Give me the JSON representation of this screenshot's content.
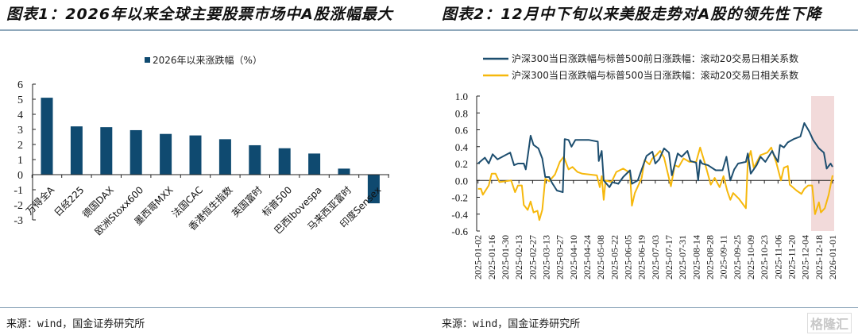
{
  "left": {
    "title": "图表1：2026年以来全球主要股票市场中A股涨幅最大",
    "source": "来源：wind，国金证券研究所"
  },
  "right": {
    "title": "图表2：12月中下旬以来美股走势对A股的领先性下降",
    "source": "来源：wind，国金证券研究所"
  },
  "watermark": "格隆汇",
  "chart_data": [
    {
      "type": "bar",
      "legend": [
        "2026年以来涨跌幅（%）"
      ],
      "legend_placement": "top",
      "categories": [
        "万得全A",
        "日经225",
        "德国DAX",
        "欧洲Stoxx600",
        "墨西哥MXX",
        "法国CAC",
        "香港恒生指数",
        "英国富时",
        "标普500",
        "巴西Ibovespa",
        "马来西亚富时",
        "印度Sensex"
      ],
      "series": [
        {
          "name": "2026年以来涨跌幅（%）",
          "values": [
            5.1,
            3.2,
            3.15,
            2.95,
            2.7,
            2.6,
            2.35,
            1.95,
            1.75,
            1.4,
            0.4,
            -1.9
          ]
        }
      ],
      "ylim": [
        -3,
        6
      ],
      "yticks": [
        "6",
        "5",
        "4",
        "3",
        "2",
        "1",
        "0",
        "-1",
        "-2",
        "-3"
      ],
      "grid": false,
      "colors": {
        "bar": "#0f4a70"
      }
    },
    {
      "type": "line",
      "legend_placement": "top",
      "ylim": [
        -0.6,
        1.0
      ],
      "yticks": [
        "1.0",
        "0.8",
        "0.6",
        "0.4",
        "0.2",
        "0.0",
        "-0.2",
        "-0.4",
        "-0.6"
      ],
      "xticks": [
        "2025-01-02",
        "2025-01-16",
        "2025-01-30",
        "2025-02-13",
        "2025-02-27",
        "2025-03-13",
        "2025-03-27",
        "2025-04-10",
        "2025-04-24",
        "2025-05-08",
        "2025-05-22",
        "2025-06-05",
        "2025-06-19",
        "2025-07-03",
        "2025-07-17",
        "2025-07-31",
        "2025-08-14",
        "2025-08-28",
        "2025-09-11",
        "2025-09-25",
        "2025-10-09",
        "2025-10-23",
        "2025-11-06",
        "2025-11-20",
        "2025-12-04",
        "2025-12-18",
        "2026-01-01"
      ],
      "highlight": {
        "from": "2025-12-10",
        "to": "2026-01-01",
        "color": "#f2dada"
      },
      "grid": false,
      "series": [
        {
          "name": "沪深300当日涨跌幅与标普500前日涨跌幅：滚动20交易日相关系数",
          "color": "#1d4e6f",
          "x": [
            "2025-01-02",
            "2025-01-09",
            "2025-01-13",
            "2025-01-17",
            "2025-01-22",
            "2025-02-04",
            "2025-02-08",
            "2025-02-12",
            "2025-02-18",
            "2025-02-20",
            "2025-02-22",
            "2025-02-25",
            "2025-02-28",
            "2025-03-05",
            "2025-03-09",
            "2025-03-12",
            "2025-03-16",
            "2025-03-19",
            "2025-03-24",
            "2025-03-30",
            "2025-04-01",
            "2025-04-05",
            "2025-04-08",
            "2025-04-12",
            "2025-04-26",
            "2025-05-05",
            "2025-05-06",
            "2025-05-09",
            "2025-05-11",
            "2025-05-17",
            "2025-05-20",
            "2025-05-26",
            "2025-05-31",
            "2025-06-07",
            "2025-06-09",
            "2025-06-15",
            "2025-06-24",
            "2025-06-30",
            "2025-07-03",
            "2025-07-07",
            "2025-07-12",
            "2025-07-17",
            "2025-07-20",
            "2025-07-26",
            "2025-07-30",
            "2025-08-05",
            "2025-08-08",
            "2025-08-14",
            "2025-08-16",
            "2025-08-18",
            "2025-08-20",
            "2025-08-26",
            "2025-09-03",
            "2025-09-10",
            "2025-09-14",
            "2025-09-18",
            "2025-09-22",
            "2025-09-26",
            "2025-10-04",
            "2025-10-06",
            "2025-10-09",
            "2025-10-15",
            "2025-10-19",
            "2025-10-24",
            "2025-10-31",
            "2025-11-02",
            "2025-11-06",
            "2025-11-08",
            "2025-11-12",
            "2025-11-16",
            "2025-11-22",
            "2025-11-29",
            "2025-12-03",
            "2025-12-08",
            "2025-12-12",
            "2025-12-18",
            "2025-12-23",
            "2025-12-26",
            "2025-12-30",
            "2026-01-01"
          ],
          "y": [
            0.2,
            0.27,
            0.2,
            0.31,
            0.25,
            0.33,
            0.18,
            0.2,
            0.2,
            0.13,
            0.28,
            0.53,
            0.42,
            0.38,
            0.26,
            0.04,
            0.04,
            -0.03,
            -0.12,
            -0.14,
            0.49,
            0.48,
            0.4,
            0.48,
            0.48,
            0.46,
            0.23,
            0.35,
            0.0,
            -0.08,
            -0.02,
            -0.04,
            0.04,
            0.12,
            -0.04,
            0.0,
            0.29,
            0.34,
            0.2,
            0.25,
            0.38,
            0.33,
            0.06,
            0.32,
            0.28,
            0.35,
            0.23,
            0.21,
            0.0,
            0.24,
            0.2,
            0.18,
            0.12,
            0.12,
            0.28,
            0.0,
            0.13,
            0.2,
            0.22,
            0.32,
            0.08,
            0.18,
            0.28,
            0.22,
            0.35,
            0.3,
            0.22,
            0.42,
            0.39,
            0.45,
            0.49,
            0.52,
            0.68,
            0.58,
            0.48,
            0.38,
            0.33,
            0.14,
            0.2,
            0.16
          ]
        },
        {
          "name": "沪深300当日涨跌幅与标普500当日涨跌幅：滚动20交易日相关系数",
          "color": "#f6b80c",
          "x": [
            "2025-01-02",
            "2025-01-05",
            "2025-01-07",
            "2025-01-13",
            "2025-01-16",
            "2025-01-20",
            "2025-01-24",
            "2025-02-05",
            "2025-02-09",
            "2025-02-12",
            "2025-02-16",
            "2025-02-18",
            "2025-02-22",
            "2025-02-25",
            "2025-02-28",
            "2025-03-04",
            "2025-03-06",
            "2025-03-09",
            "2025-03-12",
            "2025-03-16",
            "2025-03-22",
            "2025-03-27",
            "2025-03-31",
            "2025-04-05",
            "2025-04-09",
            "2025-04-14",
            "2025-04-19",
            "2025-05-04",
            "2025-05-07",
            "2025-05-09",
            "2025-05-11",
            "2025-05-13",
            "2025-05-19",
            "2025-05-24",
            "2025-05-31",
            "2025-06-07",
            "2025-06-09",
            "2025-06-12",
            "2025-06-19",
            "2025-06-22",
            "2025-06-27",
            "2025-06-30",
            "2025-07-04",
            "2025-07-08",
            "2025-07-12",
            "2025-07-19",
            "2025-07-23",
            "2025-07-27",
            "2025-08-01",
            "2025-08-07",
            "2025-08-14",
            "2025-08-18",
            "2025-08-23",
            "2025-08-29",
            "2025-09-02",
            "2025-09-07",
            "2025-09-11",
            "2025-09-15",
            "2025-09-18",
            "2025-09-21",
            "2025-09-27",
            "2025-10-04",
            "2025-10-06",
            "2025-10-09",
            "2025-10-12",
            "2025-10-19",
            "2025-10-26",
            "2025-10-30",
            "2025-11-04",
            "2025-11-09",
            "2025-11-12",
            "2025-11-16",
            "2025-11-18",
            "2025-11-25",
            "2025-11-30",
            "2025-12-03",
            "2025-12-07",
            "2025-12-11",
            "2025-12-14",
            "2025-12-18",
            "2025-12-20",
            "2025-12-24",
            "2025-12-28",
            "2026-01-01"
          ],
          "y": [
            -0.1,
            -0.1,
            -0.17,
            -0.06,
            0.08,
            0.08,
            -0.02,
            0.0,
            -0.14,
            -0.06,
            -0.06,
            -0.29,
            -0.35,
            -0.25,
            -0.38,
            -0.36,
            -0.47,
            -0.35,
            0.02,
            -0.01,
            0.07,
            0.22,
            0.28,
            0.13,
            0.16,
            0.1,
            0.08,
            0.06,
            -0.08,
            0.05,
            -0.23,
            0.0,
            -0.02,
            0.1,
            0.14,
            0.09,
            -0.3,
            -0.15,
            0.03,
            0.24,
            0.19,
            0.26,
            0.3,
            0.35,
            0.27,
            -0.07,
            0.18,
            0.16,
            0.26,
            0.22,
            0.22,
            0.39,
            0.2,
            -0.05,
            0.03,
            -0.08,
            0.05,
            -0.13,
            -0.23,
            -0.15,
            -0.22,
            -0.33,
            0.23,
            0.35,
            0.15,
            0.3,
            0.33,
            0.39,
            0.22,
            0.0,
            0.15,
            0.17,
            -0.05,
            -0.12,
            -0.16,
            -0.1,
            -0.06,
            -0.06,
            -0.4,
            -0.26,
            -0.38,
            -0.33,
            -0.17,
            0.06
          ]
        }
      ]
    }
  ]
}
